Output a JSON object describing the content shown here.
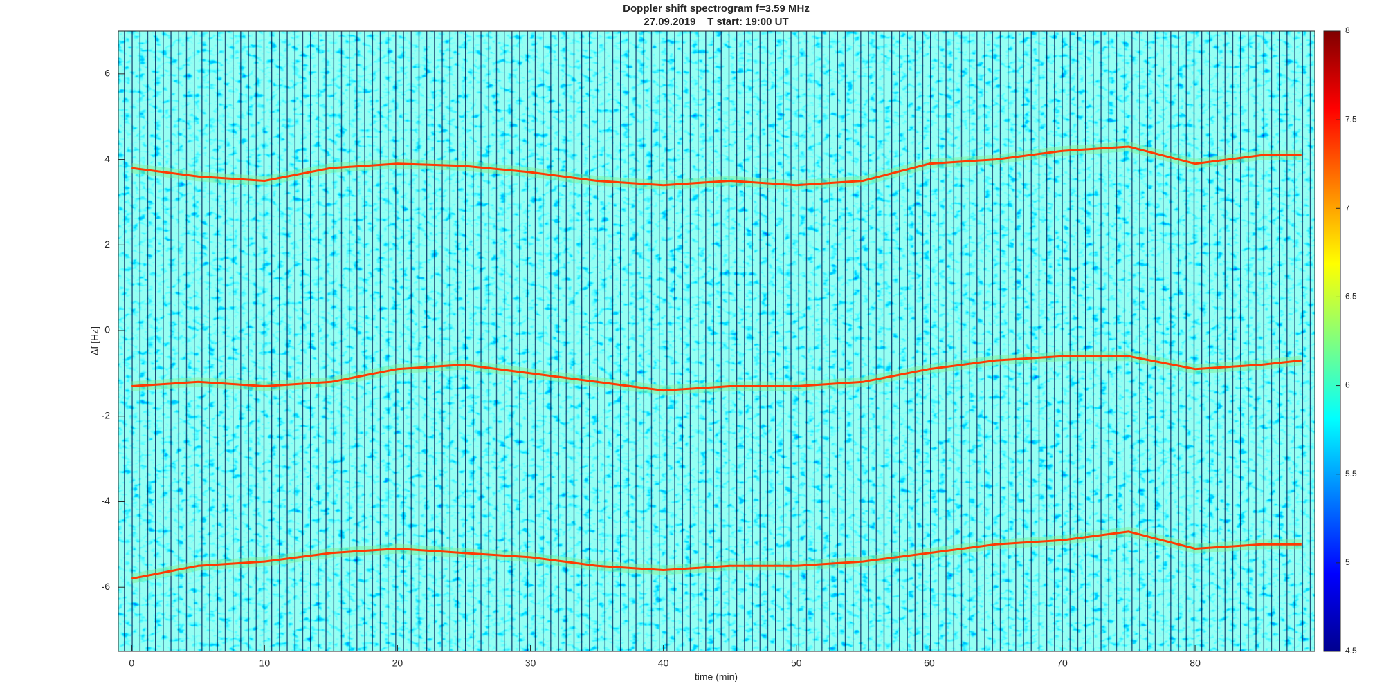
{
  "chart_data": {
    "type": "spectrogram",
    "title": "Doppler shift spectrogram f=3.59 MHz",
    "subtitle": "27.09.2019    T start: 19:00 UT",
    "x_label": "time (min)",
    "y_label": "Δf [Hz]",
    "xlim": [
      -1,
      89
    ],
    "xticks": [
      0,
      10,
      20,
      30,
      40,
      50,
      60,
      70,
      80
    ],
    "ylim": [
      -7.5,
      7
    ],
    "yticks": [
      -6,
      -4,
      -2,
      0,
      2,
      4,
      6
    ],
    "x": [
      0,
      5,
      10,
      15,
      20,
      25,
      30,
      35,
      40,
      45,
      50,
      55,
      60,
      65,
      70,
      75,
      80,
      85,
      88
    ],
    "series": [
      {
        "color": "#ff3a00",
        "values": [
          3.8,
          3.6,
          3.5,
          3.8,
          3.9,
          3.85,
          3.7,
          3.5,
          3.4,
          3.5,
          3.4,
          3.5,
          3.9,
          4.0,
          4.2,
          4.3,
          3.9,
          4.1,
          4.1
        ]
      },
      {
        "color": "#ff3a00",
        "values": [
          -1.3,
          -1.2,
          -1.3,
          -1.2,
          -0.9,
          -0.8,
          -1.0,
          -1.2,
          -1.4,
          -1.3,
          -1.3,
          -1.2,
          -0.9,
          -0.7,
          -0.6,
          -0.6,
          -0.9,
          -0.8,
          -0.7
        ]
      },
      {
        "color": "#ff3a00",
        "values": [
          -5.8,
          -5.5,
          -5.4,
          -5.2,
          -5.1,
          -5.2,
          -5.3,
          -5.5,
          -5.6,
          -5.5,
          -5.5,
          -5.4,
          -5.2,
          -5.0,
          -4.9,
          -4.7,
          -5.1,
          -5.0,
          -5.0
        ]
      }
    ],
    "clim": [
      4.5,
      8
    ],
    "cticks": [
      4.5,
      5,
      5.5,
      6,
      6.5,
      7,
      7.5,
      8
    ]
  }
}
